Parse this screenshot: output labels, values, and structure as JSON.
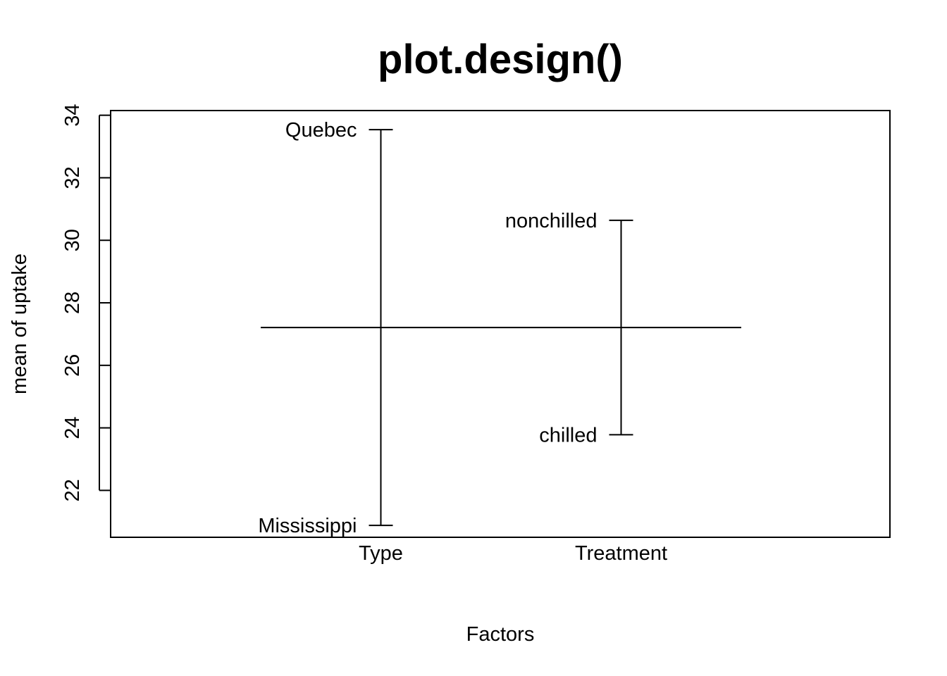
{
  "chart_data": {
    "type": "design",
    "title": "plot.design()",
    "xlabel": "Factors",
    "ylabel": "mean of uptake",
    "ylim": [
      20.5,
      34.15
    ],
    "y_ticks": [
      22,
      24,
      26,
      28,
      30,
      32,
      34
    ],
    "grand_mean": 27.21,
    "factors": [
      {
        "name": "Type",
        "levels": [
          {
            "label": "Quebec",
            "value": 33.54
          },
          {
            "label": "Mississippi",
            "value": 20.88
          }
        ]
      },
      {
        "name": "Treatment",
        "levels": [
          {
            "label": "nonchilled",
            "value": 30.64
          },
          {
            "label": "chilled",
            "value": 23.78
          }
        ]
      }
    ]
  }
}
